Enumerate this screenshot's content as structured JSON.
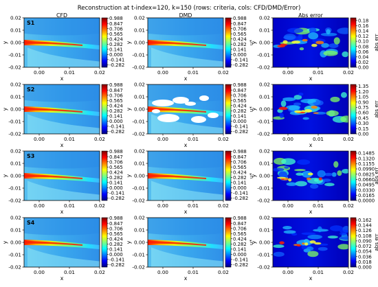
{
  "title": "Reconstruction at t-index=120, k=150 (rows: criteria, cols: CFD/DMD/Error)",
  "columns": [
    "CFD",
    "DMD",
    "Abs error"
  ],
  "chart_data": {
    "type": "heatmap",
    "xlabel": "x",
    "ylabel_left": "y",
    "ylabel_middle": "u*",
    "ylabel_right": "abs err",
    "xlim": [
      -0.005,
      0.02
    ],
    "ylim": [
      -0.02,
      0.02
    ],
    "xticks": [
      "0.00",
      "0.01",
      "0.02"
    ],
    "yticks": [
      "0.02",
      "0.01",
      "0.00",
      "-0.01",
      "-0.02"
    ],
    "field_colorbar": [
      "0.988",
      "0.847",
      "0.706",
      "0.565",
      "0.424",
      "0.282",
      "0.141",
      "0.000",
      "-0.141",
      "-0.282"
    ],
    "field_range": [
      -0.35,
      1.0
    ],
    "colormap": "jet",
    "rows": [
      {
        "label": "S1",
        "error_ticks": [
          "0.18",
          "0.16",
          "0.14",
          "0.12",
          "0.10",
          "0.08",
          "0.06",
          "0.04",
          "0.02",
          "0.00"
        ],
        "error_max": 0.19,
        "dmd_artifacts": false
      },
      {
        "label": "S2",
        "error_ticks": [
          "1.35",
          "1.20",
          "1.05",
          "0.90",
          "0.75",
          "0.60",
          "0.45",
          "0.30",
          "0.15",
          "0.00"
        ],
        "error_max": 1.4,
        "dmd_artifacts": true
      },
      {
        "label": "S3",
        "error_ticks": [
          "0.1485",
          "0.1320",
          "0.1155",
          "0.0990",
          "0.0825",
          "0.0660",
          "0.0495",
          "0.0330",
          "0.0165",
          "0.0000"
        ],
        "error_max": 0.155,
        "dmd_artifacts": false
      },
      {
        "label": "S4",
        "error_ticks": [
          "0.162",
          "0.144",
          "0.126",
          "0.108",
          "0.090",
          "0.072",
          "0.054",
          "0.036",
          "0.018",
          "0.000"
        ],
        "error_max": 0.17,
        "dmd_artifacts": false
      }
    ]
  }
}
